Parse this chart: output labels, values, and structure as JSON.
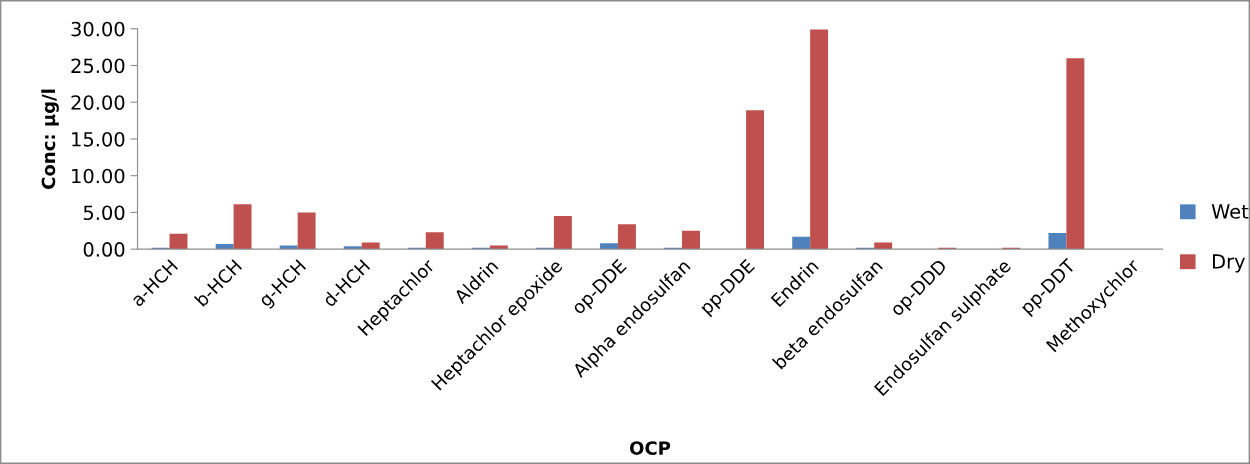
{
  "chart_data": {
    "type": "bar",
    "xlabel": "OCP",
    "ylabel": "Conc: μg/l",
    "categories": [
      "a-HCH",
      "b-HCH",
      "g-HCH",
      "d-HCH",
      "Heptachlor",
      "Aldrin",
      "Heptachlor epoxide",
      "op-DDE",
      "Alpha endosulfan",
      "pp-DDE",
      "Endrin",
      "beta endosulfan",
      "op-DDD",
      "Endosulfan sulphate",
      "pp-DDT",
      "Methoxychlor"
    ],
    "series": [
      {
        "name": "Wet",
        "color": "#4f81bd",
        "values": [
          0.2,
          0.7,
          0.5,
          0.4,
          0.2,
          0.2,
          0.2,
          0.8,
          0.2,
          0,
          1.7,
          0.2,
          0,
          0,
          2.2,
          0
        ]
      },
      {
        "name": "Dry",
        "color": "#c0504d",
        "values": [
          2.1,
          6.1,
          5.0,
          0.9,
          2.3,
          0.5,
          4.5,
          3.4,
          2.5,
          18.9,
          29.9,
          0.9,
          0.2,
          0.2,
          26.0,
          0
        ]
      }
    ],
    "ylim": [
      0,
      30
    ],
    "yticks": [
      {
        "value": 0,
        "label": "0.00"
      },
      {
        "value": 5,
        "label": "5.00"
      },
      {
        "value": 10,
        "label": "10.00"
      },
      {
        "value": 15,
        "label": "15.00"
      },
      {
        "value": 20,
        "label": "20.00"
      },
      {
        "value": 25,
        "label": "25.00"
      },
      {
        "value": 30,
        "label": "30.00"
      }
    ],
    "grid": false,
    "legend": "right"
  }
}
